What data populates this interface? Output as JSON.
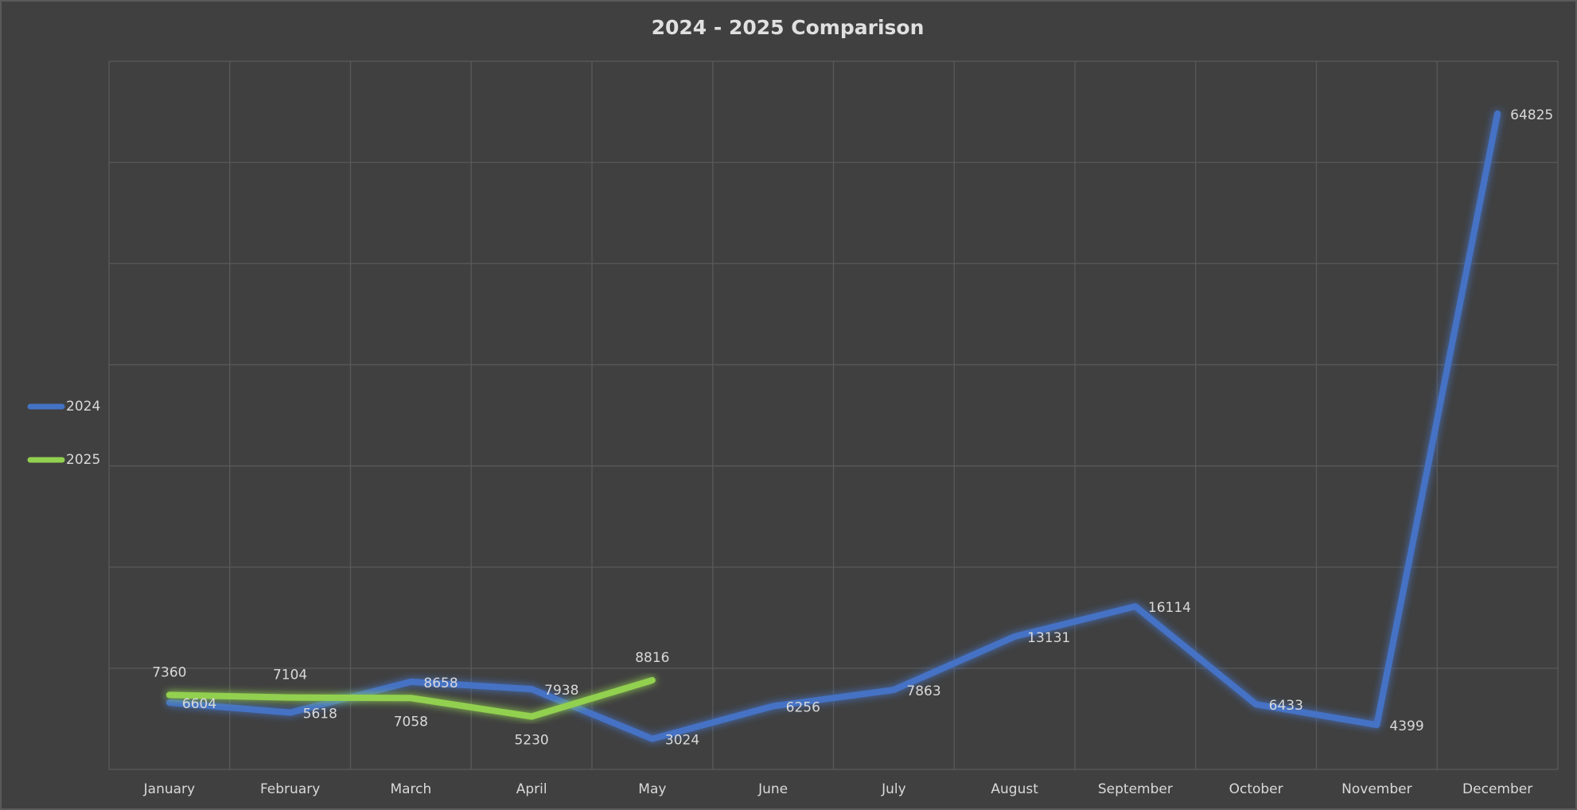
{
  "chart_data": {
    "type": "line",
    "title": "2024 - 2025 Comparison",
    "categories": [
      "January",
      "February",
      "March",
      "April",
      "May",
      "June",
      "July",
      "August",
      "September",
      "October",
      "November",
      "December"
    ],
    "series": [
      {
        "name": "2024",
        "color": "#4472c4",
        "values": [
          6604,
          5618,
          8658,
          7938,
          3024,
          6256,
          7863,
          13131,
          16114,
          6433,
          4399,
          64825
        ]
      },
      {
        "name": "2025",
        "color": "#92d050",
        "values": [
          7360,
          7104,
          7058,
          5230,
          8816,
          null,
          null,
          null,
          null,
          null,
          null,
          null
        ]
      }
    ],
    "ylim": [
      0,
      70000
    ],
    "yticks": [
      0,
      10000,
      20000,
      30000,
      40000,
      50000,
      60000,
      70000
    ],
    "grid": true,
    "legend": "left"
  }
}
